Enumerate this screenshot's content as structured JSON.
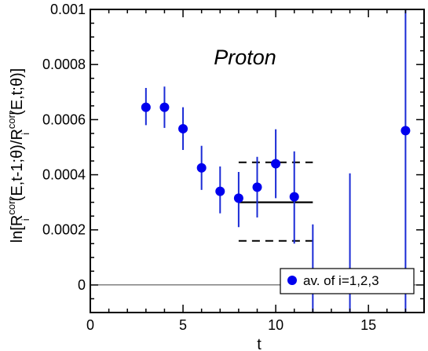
{
  "chart_data": {
    "type": "scatter",
    "annotation": "Proton",
    "xlabel": "t",
    "ylabel": {
      "prefix": "ln[R",
      "sub1": "i",
      "sup1": "corr",
      "mid": "(E,t-1;θ)/R",
      "sub2": "i",
      "sup2": "corr",
      "suffix": "(E,t;θ)]"
    },
    "xlim": [
      0,
      18
    ],
    "ylim": [
      -0.0001,
      0.001
    ],
    "x_ticks": [
      0,
      5,
      10,
      15
    ],
    "x_tick_labels": [
      "0",
      "5",
      "10",
      "15"
    ],
    "y_ticks": [
      0,
      0.0002,
      0.0004,
      0.0006,
      0.0008,
      0.001
    ],
    "y_tick_labels": [
      "0",
      "0.0002",
      "0.0004",
      "0.0006",
      "0.0008",
      "0.001"
    ],
    "grid": false,
    "legend": {
      "position": "bottom-right",
      "entries": [
        "av. of i=1,2,3"
      ]
    },
    "colors": {
      "series": "#0000ee",
      "error_bars": "#1a2bd6",
      "fit": "#000000"
    },
    "series": [
      {
        "name": "av. of i=1,2,3",
        "x": [
          3,
          4,
          5,
          6,
          7,
          8,
          9,
          10,
          11,
          17
        ],
        "y": [
          0.000645,
          0.000645,
          0.000567,
          0.000425,
          0.00034,
          0.000315,
          0.000355,
          0.00044,
          0.00032,
          0.00056
        ],
        "err_low": [
          0.00058,
          0.00057,
          0.00049,
          0.000345,
          0.00026,
          0.00021,
          0.000245,
          0.000315,
          0.00015,
          -0.0001
        ],
        "err_high": [
          0.000715,
          0.00072,
          0.000645,
          0.000505,
          0.00043,
          0.00041,
          0.000465,
          0.000565,
          0.000485,
          0.001
        ]
      }
    ],
    "unpaired_errors": [
      {
        "x": 12,
        "low": -0.0001,
        "high": 0.00022
      },
      {
        "x": 14,
        "low": -0.0001,
        "high": 0.000405
      }
    ],
    "fit": {
      "x_range": [
        8,
        12
      ],
      "value": 0.0003,
      "band_low": 0.00016,
      "band_high": 0.000445
    },
    "zero_line": 0
  }
}
